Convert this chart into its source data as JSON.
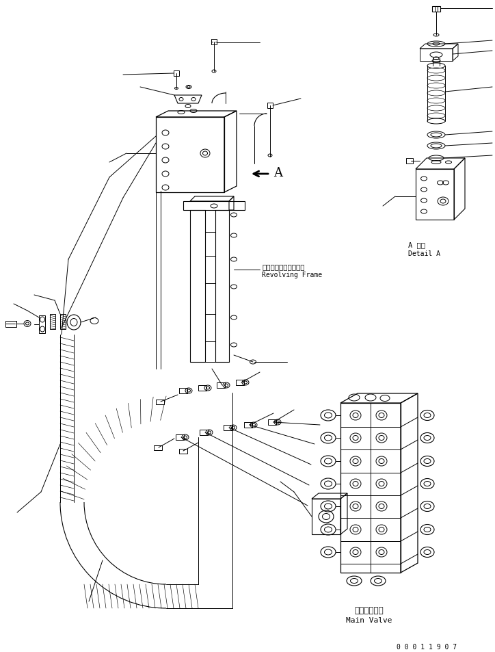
{
  "bg_color": "#ffffff",
  "line_color": "#000000",
  "fig_width": 7.24,
  "fig_height": 9.54,
  "dpi": 100,
  "part_number": "0 0 0 1 1 9 0 7",
  "label_detail_jp": "A 詳細",
  "label_detail_en": "Detail A",
  "label_revolving_jp": "レボルビングフレーム",
  "label_revolving_en": "Revolving Frame",
  "label_mainvalve_jp": "メインバルブ",
  "label_mainvalve_en": "Main Valve",
  "label_A": "A"
}
